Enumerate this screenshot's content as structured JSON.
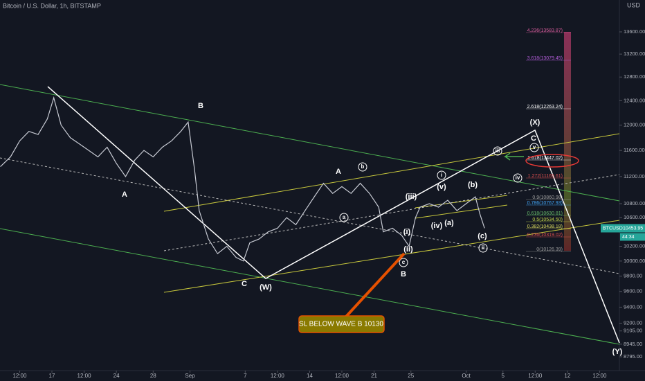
{
  "header": {
    "title": "Bitcoin / U.S. Dollar, 1h, BITSTAMP",
    "currency": "USD"
  },
  "chart_data": {
    "type": "line",
    "log_scale": true,
    "x": [
      11.4,
      12.5,
      13.5,
      14.5,
      15.5,
      16.5,
      17.2,
      18,
      19,
      20,
      21,
      22,
      23,
      24,
      25,
      26,
      27,
      28,
      29,
      30,
      31,
      31.8,
      32.5,
      33,
      34,
      35,
      36,
      37,
      37.8,
      38.5,
      39.5,
      40.5,
      41.5,
      42.5,
      43.5,
      44.5,
      45.5,
      46.5,
      47.5,
      48.5,
      49.5,
      50.5,
      51.5,
      52.5,
      53,
      54,
      55,
      55.8,
      56.5,
      57,
      58,
      59,
      60,
      61,
      62,
      63,
      63.5,
      64
    ],
    "series": [
      {
        "name": "BTCUSD",
        "color": "#c8cbd4",
        "values": [
          11350,
          11500,
          11750,
          11900,
          11850,
          12100,
          12450,
          12000,
          11800,
          11700,
          11600,
          11500,
          11650,
          11400,
          11200,
          11450,
          11600,
          11500,
          11650,
          11750,
          11900,
          12050,
          11300,
          10700,
          10300,
          10100,
          10200,
          10050,
          10000,
          10250,
          10300,
          10400,
          10450,
          10600,
          10500,
          10700,
          10900,
          11100,
          10950,
          11050,
          10950,
          11100,
          10950,
          10750,
          10400,
          10450,
          10350,
          10200,
          10600,
          10750,
          10800,
          10750,
          10850,
          10700,
          10800,
          10900,
          10650,
          10450
        ]
      }
    ],
    "xlim": [
      11.36,
      78.65
    ],
    "xticks": [
      {
        "value": 13.5,
        "label": "12:00"
      },
      17,
      {
        "value": 20.5,
        "label": "12:00"
      },
      24,
      28,
      {
        "value": 32,
        "label": "Sep"
      },
      {
        "value": 38,
        "label": "7"
      },
      {
        "value": 41.5,
        "label": "12:00"
      },
      {
        "value": 45,
        "label": "14"
      },
      {
        "value": 48.5,
        "label": "12:00"
      },
      {
        "value": 52,
        "label": "21"
      },
      {
        "value": 56,
        "label": "25"
      },
      {
        "value": 62,
        "label": "Oct"
      },
      {
        "value": 66,
        "label": "5"
      },
      {
        "value": 69.5,
        "label": "12:00"
      },
      {
        "value": 73,
        "label": "12"
      },
      {
        "value": 76.5,
        "label": "12:00"
      }
    ],
    "ylim": [
      8633,
      14194
    ],
    "yticks": [
      {
        "value": 13600,
        "label": "13600.00"
      },
      {
        "value": 13200,
        "label": "13200.00"
      },
      {
        "value": 12800,
        "label": "12800.00"
      },
      {
        "value": 12400,
        "label": "12400.00"
      },
      {
        "value": 12000,
        "label": "12000.00"
      },
      {
        "value": 11600,
        "label": "11600.00"
      },
      {
        "value": 11200,
        "label": "11200.00"
      },
      {
        "value": 10800,
        "label": "10800.00"
      },
      {
        "value": 10600,
        "label": "10600.00"
      },
      {
        "value": 10200,
        "label": "10200.00"
      },
      {
        "value": 10000,
        "label": "10000.00"
      },
      {
        "value": 9800,
        "label": "9800.00"
      },
      {
        "value": 9600,
        "label": "9600.00"
      },
      {
        "value": 9400,
        "label": "9400.00"
      },
      {
        "value": 9200,
        "label": "9200.00"
      },
      {
        "value": 9105,
        "label": "9105.00"
      },
      {
        "value": 8945,
        "label": "8945.00"
      },
      {
        "value": 8795,
        "label": "8795.00"
      }
    ],
    "price_tag": {
      "symbol": "BTCUSD",
      "price": "10453.95",
      "countdown": "44:34"
    },
    "fib_labels": [
      "4.236(13583.87)",
      "3.618(13079.45)",
      "2.618(12263.24)",
      "1.618(11447.02)",
      "1.272(11165.61)",
      "0.9(10860.98)",
      "0.786(10767.93)",
      "0.618(10630.81)",
      "0.5(10534.50)",
      "0.382(10438.18)",
      "0.236(10319.02)",
      "0(10126.39)"
    ],
    "annotations": [
      "A",
      "B",
      "C",
      "(W)",
      "A",
      "b",
      "i",
      "(iii)",
      "(v)",
      "(b)",
      "iv",
      "iii",
      "a",
      "(iv)",
      "(a)",
      "(i)",
      "(ii)",
      "c",
      "B",
      "(c)",
      "ii",
      "(X)",
      "C",
      "v",
      "(Y)"
    ],
    "callout": "SL BELOW WAVE B 10130"
  }
}
